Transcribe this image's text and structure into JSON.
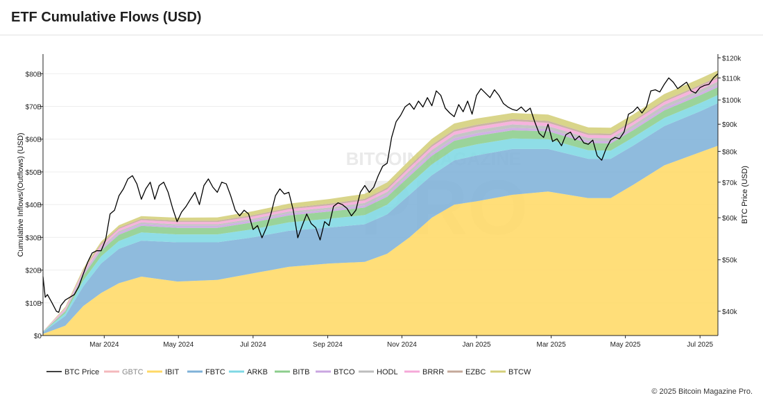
{
  "page": {
    "title": "ETF Cumulative Flows (USD)",
    "copyright": "© 2025 Bitcoin Magazine Pro."
  },
  "watermark": {
    "line1": "BITCOIN MAGAZINE",
    "line2": "PRO"
  },
  "chart_data": {
    "type": "area",
    "stacked": true,
    "title": "ETF Cumulative Flows (USD)",
    "ylabel": "Cumulative Inflows/(Outflows) (USD)",
    "y2label": "BTC Price (USD)",
    "x_range": [
      2024.03,
      2025.54
    ],
    "ylim": [
      0,
      86
    ],
    "y2_range": [
      36000,
      122000
    ],
    "y2_scale": "log",
    "yticks": [
      0,
      10,
      20,
      30,
      40,
      50,
      60,
      70,
      80
    ],
    "ytick_labels": [
      "$0",
      "$10B",
      "$20B",
      "$30B",
      "$40B",
      "$50B",
      "$60B",
      "$70B",
      "$80B"
    ],
    "y2ticks": [
      40000,
      50000,
      60000,
      70000,
      80000,
      90000,
      100000,
      110000,
      120000
    ],
    "y2tick_labels": [
      "$40k",
      "$50k",
      "$60k",
      "$70k",
      "$80k",
      "$90k",
      "$100k",
      "$110k",
      "$120k"
    ],
    "xticks": [
      2024.167,
      2024.333,
      2024.5,
      2024.667,
      2024.833,
      2025.0,
      2025.167,
      2025.333,
      2025.5
    ],
    "xtick_labels": [
      "Mar 2024",
      "May 2024",
      "Jul 2024",
      "Sep 2024",
      "Nov 2024",
      "Jan 2025",
      "Mar 2025",
      "May 2025",
      "Jul 2025"
    ],
    "x": [
      2024.03,
      2024.08,
      2024.12,
      2024.16,
      2024.2,
      2024.25,
      2024.33,
      2024.42,
      2024.5,
      2024.58,
      2024.67,
      2024.75,
      2024.8,
      2024.85,
      2024.9,
      2024.95,
      2025.0,
      2025.08,
      2025.16,
      2025.25,
      2025.3,
      2025.35,
      2025.42,
      2025.5,
      2025.54
    ],
    "legend": [
      "BTC Price",
      "GBTC",
      "IBIT",
      "FBTC",
      "ARKB",
      "BITB",
      "BTCO",
      "HODL",
      "BRRR",
      "EZBC",
      "BTCW"
    ],
    "series": [
      {
        "name": "IBIT",
        "color": "#ffd966",
        "values": [
          0.5,
          3,
          9,
          13,
          16,
          18,
          16.5,
          17,
          19,
          21,
          22,
          22.5,
          25,
          30,
          36,
          40,
          41,
          43,
          44,
          42,
          42,
          46,
          52,
          56,
          58
        ]
      },
      {
        "name": "FBTC",
        "color": "#7fb2d8",
        "values": [
          0.5,
          3,
          6,
          9,
          10.5,
          11,
          12,
          11.5,
          11,
          11,
          11,
          11.5,
          12,
          13,
          13,
          13.5,
          14,
          14,
          13,
          12,
          12,
          12,
          12,
          12.5,
          13
        ]
      },
      {
        "name": "ARKB",
        "color": "#7fd8e4",
        "values": [
          0.1,
          0.8,
          1.8,
          2.2,
          2.4,
          2.5,
          2.4,
          2.4,
          2.5,
          2.6,
          2.7,
          2.8,
          3,
          3.2,
          3.3,
          3.4,
          3.4,
          3.2,
          3,
          2.6,
          2.5,
          2.5,
          2.5,
          2.5,
          2.5
        ]
      },
      {
        "name": "BITB",
        "color": "#8ccd8c",
        "values": [
          0.1,
          0.6,
          1.5,
          1.8,
          1.9,
          2,
          2,
          2,
          2.1,
          2.1,
          2.2,
          2.3,
          2.4,
          2.5,
          2.6,
          2.6,
          2.6,
          2.5,
          2.4,
          2.2,
          2.2,
          2.2,
          2.3,
          2.4,
          2.4
        ]
      },
      {
        "name": "BTCO",
        "color": "#c9a6e0",
        "values": [
          0,
          0.3,
          0.5,
          0.6,
          0.6,
          0.6,
          0.6,
          0.6,
          0.6,
          0.6,
          0.6,
          0.7,
          0.7,
          0.8,
          0.8,
          0.8,
          0.8,
          0.8,
          0.7,
          0.7,
          0.7,
          0.7,
          0.7,
          0.7,
          0.7
        ]
      },
      {
        "name": "HODL",
        "color": "#bdbdbd",
        "values": [
          0,
          0.2,
          0.3,
          0.4,
          0.5,
          0.5,
          0.5,
          0.5,
          0.5,
          0.6,
          0.6,
          0.7,
          0.8,
          0.9,
          1,
          1,
          1,
          1,
          0.9,
          0.9,
          0.9,
          0.9,
          1,
          1,
          1
        ]
      },
      {
        "name": "BRRR",
        "color": "#f5a8d8",
        "values": [
          0.1,
          0.4,
          0.6,
          0.7,
          0.7,
          0.7,
          0.7,
          0.7,
          0.7,
          0.7,
          0.7,
          0.8,
          0.8,
          0.9,
          1,
          1,
          1,
          1,
          1,
          0.9,
          0.9,
          0.9,
          0.9,
          1,
          1
        ]
      },
      {
        "name": "EZBC",
        "color": "#c4a89a",
        "values": [
          0,
          0.2,
          0.3,
          0.4,
          0.4,
          0.4,
          0.4,
          0.4,
          0.4,
          0.4,
          0.5,
          0.5,
          0.5,
          0.6,
          0.6,
          0.6,
          0.6,
          0.6,
          0.6,
          0.5,
          0.5,
          0.5,
          0.5,
          0.5,
          0.5
        ]
      },
      {
        "name": "BTCW",
        "color": "#d4cf7a",
        "values": [
          0,
          0.3,
          0.5,
          0.6,
          0.7,
          0.8,
          0.9,
          1,
          1.2,
          1.3,
          1.4,
          1.5,
          1.6,
          1.7,
          1.8,
          1.9,
          1.9,
          1.9,
          1.9,
          1.8,
          1.8,
          1.8,
          1.9,
          1.9,
          1.9
        ]
      }
    ],
    "gbtc": {
      "name": "GBTC",
      "color": "#f4b8bc"
    },
    "btc_price": {
      "name": "BTC Price",
      "color": "#000000",
      "x": [
        2024.03,
        2024.035,
        2024.04,
        2024.05,
        2024.06,
        2024.065,
        2024.07,
        2024.08,
        2024.09,
        2024.1,
        2024.11,
        2024.12,
        2024.13,
        2024.14,
        2024.15,
        2024.16,
        2024.17,
        2024.18,
        2024.19,
        2024.2,
        2024.21,
        2024.22,
        2024.23,
        2024.24,
        2024.25,
        2024.26,
        2024.27,
        2024.28,
        2024.29,
        2024.3,
        2024.31,
        2024.32,
        2024.33,
        2024.34,
        2024.35,
        2024.36,
        2024.37,
        2024.38,
        2024.39,
        2024.4,
        2024.41,
        2024.42,
        2024.43,
        2024.44,
        2024.45,
        2024.46,
        2024.47,
        2024.48,
        2024.49,
        2024.5,
        2024.51,
        2024.52,
        2024.53,
        2024.54,
        2024.55,
        2024.56,
        2024.57,
        2024.58,
        2024.59,
        2024.6,
        2024.61,
        2024.62,
        2024.63,
        2024.64,
        2024.65,
        2024.66,
        2024.67,
        2024.68,
        2024.69,
        2024.7,
        2024.71,
        2024.72,
        2024.73,
        2024.74,
        2024.75,
        2024.76,
        2024.77,
        2024.78,
        2024.79,
        2024.8,
        2024.81,
        2024.82,
        2024.83,
        2024.84,
        2024.85,
        2024.86,
        2024.87,
        2024.88,
        2024.89,
        2024.9,
        2024.91,
        2024.92,
        2024.93,
        2024.94,
        2024.95,
        2024.96,
        2024.97,
        2024.98,
        2024.99,
        2025.0,
        2025.01,
        2025.02,
        2025.03,
        2025.04,
        2025.05,
        2025.06,
        2025.07,
        2025.08,
        2025.09,
        2025.1,
        2025.11,
        2025.12,
        2025.13,
        2025.14,
        2025.15,
        2025.16,
        2025.17,
        2025.18,
        2025.19,
        2025.2,
        2025.21,
        2025.22,
        2025.23,
        2025.24,
        2025.25,
        2025.26,
        2025.27,
        2025.28,
        2025.29,
        2025.3,
        2025.31,
        2025.32,
        2025.33,
        2025.34,
        2025.35,
        2025.36,
        2025.37,
        2025.38,
        2025.39,
        2025.4,
        2025.41,
        2025.42,
        2025.43,
        2025.44,
        2025.45,
        2025.46,
        2025.47,
        2025.48,
        2025.49,
        2025.5,
        2025.51,
        2025.52,
        2025.53,
        2025.54
      ],
      "values": [
        46500,
        42500,
        43000,
        41500,
        40000,
        39800,
        41000,
        42000,
        42500,
        43000,
        44500,
        47000,
        49500,
        51500,
        52000,
        52000,
        54500,
        61000,
        62000,
        66000,
        68000,
        71000,
        72000,
        69500,
        65000,
        68000,
        70000,
        65000,
        69000,
        70000,
        67000,
        62500,
        59000,
        61500,
        63000,
        65000,
        67000,
        63500,
        69000,
        71000,
        68500,
        67000,
        70000,
        69500,
        66000,
        62000,
        60500,
        62000,
        61000,
        57000,
        58000,
        55000,
        57500,
        61000,
        66000,
        68000,
        66500,
        67000,
        62000,
        55000,
        58000,
        61000,
        58500,
        57500,
        54500,
        59000,
        58000,
        63000,
        64000,
        63500,
        62500,
        60500,
        62000,
        67000,
        69000,
        67000,
        68500,
        72000,
        75000,
        76000,
        85000,
        91000,
        93500,
        97000,
        98500,
        96000,
        99500,
        97000,
        101000,
        97500,
        104000,
        102000,
        96500,
        94500,
        93000,
        98000,
        95000,
        99500,
        94000,
        102000,
        105000,
        103000,
        101000,
        104500,
        102000,
        98500,
        97000,
        96000,
        95500,
        97000,
        95000,
        96500,
        91000,
        86500,
        85000,
        90000,
        83500,
        84500,
        82000,
        86000,
        87000,
        84000,
        85500,
        83000,
        82500,
        84000,
        78500,
        77000,
        81000,
        84000,
        85000,
        84500,
        87000,
        94000,
        95000,
        97000,
        94500,
        97000,
        104000,
        104500,
        103500,
        107000,
        110000,
        108000,
        105000,
        106500,
        108000,
        104000,
        103000,
        105500,
        106500,
        107000,
        110000,
        112000
      ]
    }
  }
}
